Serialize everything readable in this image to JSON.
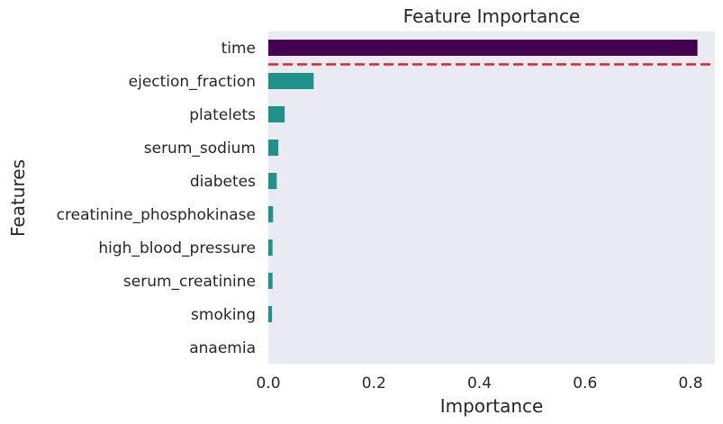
{
  "chart_data": {
    "type": "bar",
    "orientation": "horizontal",
    "title": "Feature Importance",
    "xlabel": "Importance",
    "ylabel": "Features",
    "xlim": [
      0,
      0.85
    ],
    "xticks": [
      0.0,
      0.2,
      0.4,
      0.6,
      0.8
    ],
    "xtick_labels": [
      "0.0",
      "0.2",
      "0.4",
      "0.6",
      "0.8"
    ],
    "grid": false,
    "categories": [
      "time",
      "ejection_fraction",
      "platelets",
      "serum_sodium",
      "diabetes",
      "creatinine_phosphokinase",
      "high_blood_pressure",
      "serum_creatinine",
      "smoking",
      "anaemia"
    ],
    "values": [
      0.813,
      0.086,
      0.031,
      0.019,
      0.016,
      0.009,
      0.008,
      0.008,
      0.007,
      0.0
    ],
    "bar_colors": [
      "#440154",
      "#21918c",
      "#21918c",
      "#21918c",
      "#21918c",
      "#21918c",
      "#21918c",
      "#21918c",
      "#21918c",
      "#21918c"
    ],
    "separator_line": {
      "color": "#e8251f",
      "style": "dashed",
      "between_categories": [
        "time",
        "ejection_fraction"
      ]
    },
    "background_color": "#eaeaf2"
  }
}
